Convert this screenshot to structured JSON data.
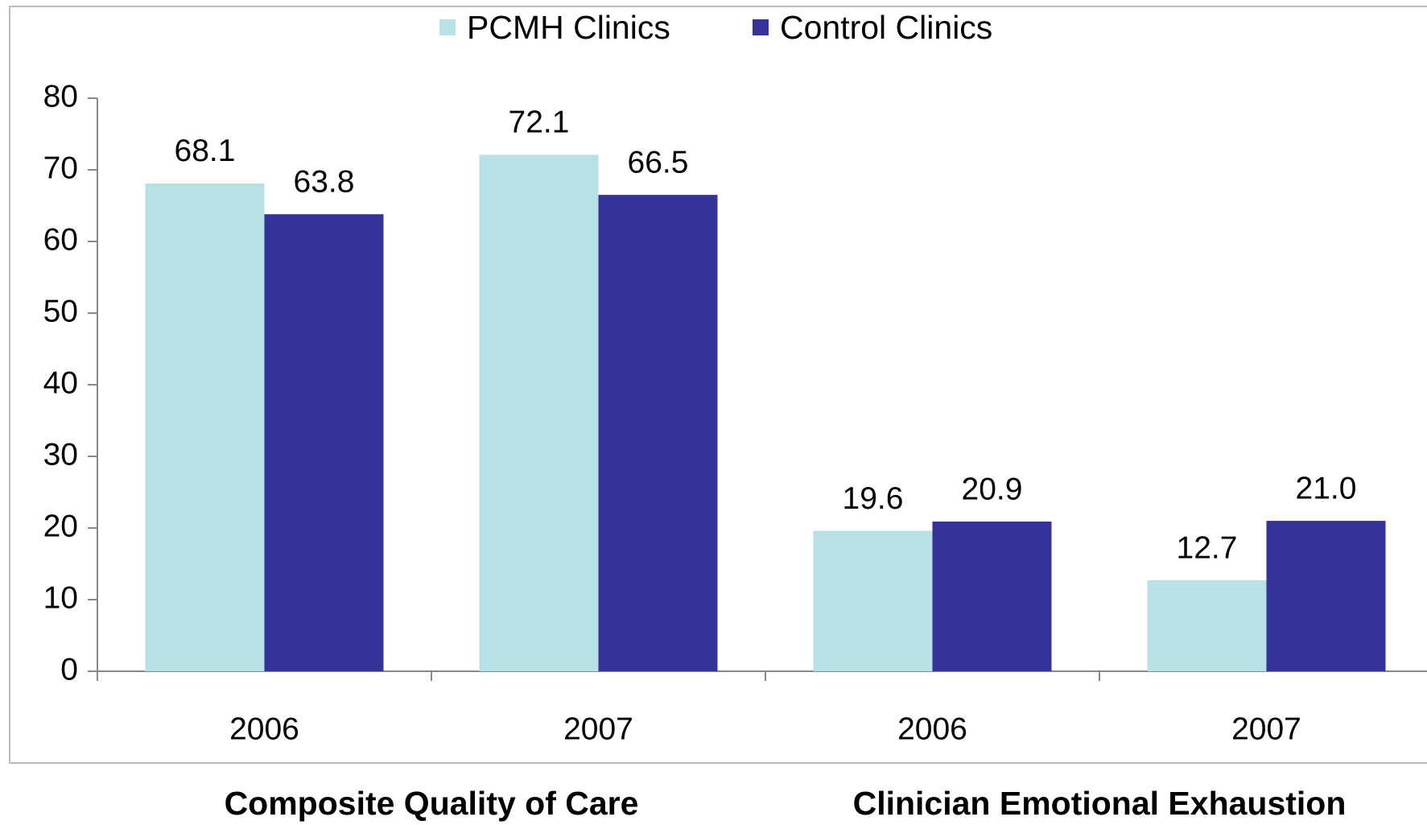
{
  "chart_data": {
    "type": "bar",
    "categories": [
      "2006",
      "2007",
      "2006",
      "2007"
    ],
    "group_labels": [
      "Composite Quality of Care",
      "Clinician Emotional Exhaustion"
    ],
    "series": [
      {
        "name": "PCMH Clinics",
        "color": "#b7e1e4",
        "values": [
          68.1,
          72.1,
          19.6,
          12.7
        ]
      },
      {
        "name": "Control Clinics",
        "color": "#333399",
        "values": [
          63.8,
          66.5,
          20.9,
          21
        ],
        "value_labels": [
          "63.8",
          "66.5",
          "20.9",
          "21.0"
        ]
      }
    ],
    "ylim": [
      0,
      80
    ],
    "yticks": [
      0,
      10,
      20,
      30,
      40,
      50,
      60,
      70,
      80
    ],
    "legend": "top"
  }
}
